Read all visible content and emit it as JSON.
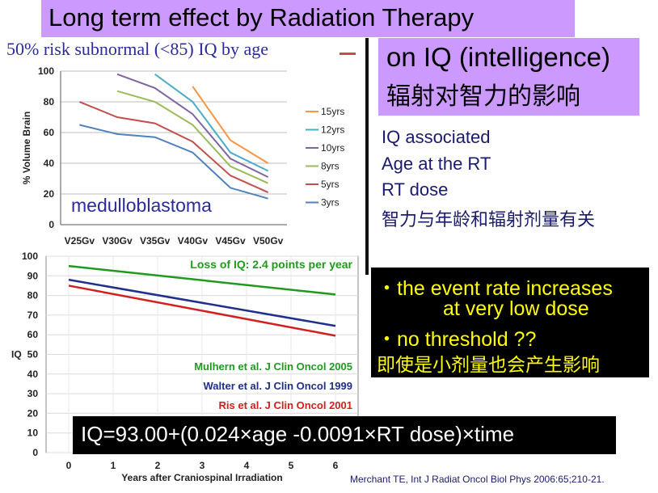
{
  "header": {
    "title": "Long term effect by Radiation Therapy",
    "subtitle": "50% risk subnormal (<85) IQ by age"
  },
  "iq_box": {
    "line1": "on IQ (intelligence)",
    "line2": "辐射对智力的影响"
  },
  "bullets": [
    "IQ associated",
    "Age at the RT",
    "RT dose",
    "智力与年龄和辐射剂量有关"
  ],
  "yellow_box": [
    "・the event rate increases",
    "at very low dose",
    "・no threshold ??",
    "即使是小剂量也会产生影响"
  ],
  "formula": "IQ=93.00+(0.024×age -0.0091×RT dose)×time",
  "reference": "Merchant TE, Int J Radiat Oncol Biol Phys 2006:65;210-21.",
  "colors": {
    "title_bg": "#cc99ff",
    "highlight_bg": "#000000",
    "highlight_text": "#ffff00"
  },
  "chart_data": [
    {
      "type": "line",
      "ylabel": "% Volume Brain",
      "xlabel": "",
      "ylim": [
        0,
        100
      ],
      "yticks": [
        0,
        20,
        40,
        60,
        80,
        100
      ],
      "categories": [
        "V25Gv",
        "V30Gv",
        "V35Gv",
        "V40Gv",
        "V45Gv",
        "V50Gv"
      ],
      "annotation": "medulloblastoma",
      "grid": true,
      "legend_position": "right",
      "series": [
        {
          "name": "15yrs",
          "color": "#f79646",
          "values": [
            null,
            null,
            null,
            90,
            55,
            40
          ]
        },
        {
          "name": "12yrs",
          "color": "#4bacc6",
          "values": [
            null,
            null,
            98,
            80,
            47,
            35
          ]
        },
        {
          "name": "10yrs",
          "color": "#8064a2",
          "values": [
            null,
            98,
            89,
            72,
            43,
            31
          ]
        },
        {
          "name": "8yrs",
          "color": "#9bbb59",
          "values": [
            null,
            87,
            80,
            65,
            38,
            27
          ]
        },
        {
          "name": "5yrs",
          "color": "#c0504d",
          "values": [
            80,
            70,
            66,
            54,
            32,
            21
          ]
        },
        {
          "name": "3yrs",
          "color": "#4f81bd",
          "values": [
            65,
            59,
            57,
            47,
            24,
            17
          ]
        }
      ]
    },
    {
      "type": "line",
      "ylabel": "IQ",
      "xlabel": "Years after Craniospinal Irradiation",
      "xlim": [
        0,
        6
      ],
      "ylim": [
        0,
        100
      ],
      "xticks": [
        0,
        1,
        2,
        3,
        4,
        5,
        6
      ],
      "yticks": [
        0,
        10,
        20,
        30,
        40,
        50,
        60,
        70,
        80,
        90,
        100
      ],
      "grid": true,
      "annotations": [
        {
          "text": "Loss of IQ: 2.4 points per year",
          "color": "#1f9a1f"
        },
        {
          "text": "Mulhern et al. J Clin Oncol 2005",
          "color": "#1f9a1f"
        },
        {
          "text": "Walter et al. J Clin Oncol 1999",
          "color": "#1f2f8a"
        },
        {
          "text": "Ris et al. J Clin Oncol 2001",
          "color": "#d02020"
        }
      ],
      "series": [
        {
          "color": "#1f9a1f",
          "x": [
            0,
            6
          ],
          "y": [
            95,
            80.5
          ]
        },
        {
          "color": "#1f2f8a",
          "x": [
            0,
            6
          ],
          "y": [
            88,
            64.5
          ]
        },
        {
          "color": "#d02020",
          "x": [
            0,
            6
          ],
          "y": [
            85,
            59.5
          ]
        }
      ]
    }
  ]
}
